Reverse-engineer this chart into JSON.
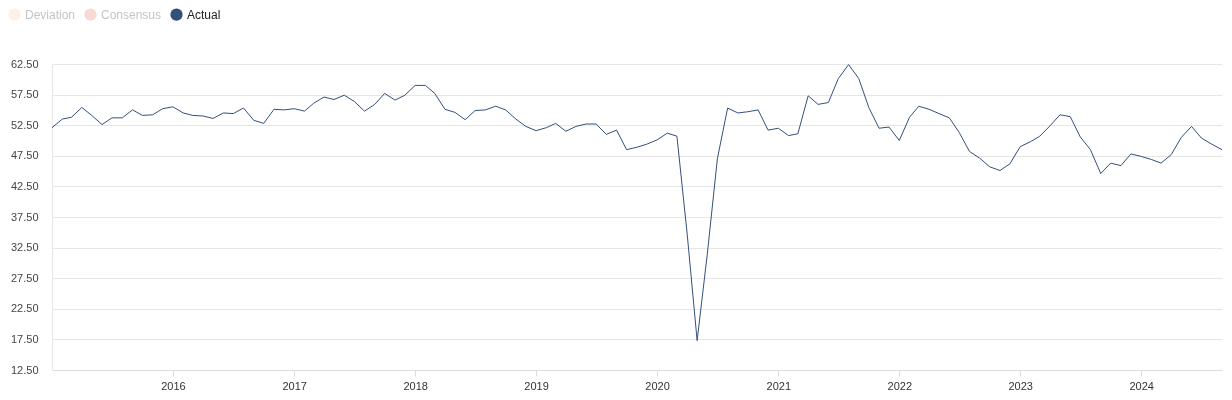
{
  "chart_data": {
    "type": "line",
    "x": [
      "2015-01",
      "2015-02",
      "2015-03",
      "2015-04",
      "2015-05",
      "2015-06",
      "2015-07",
      "2015-08",
      "2015-09",
      "2015-10",
      "2015-11",
      "2015-12",
      "2016-01",
      "2016-02",
      "2016-03",
      "2016-04",
      "2016-05",
      "2016-06",
      "2016-07",
      "2016-08",
      "2016-09",
      "2016-10",
      "2016-11",
      "2016-12",
      "2017-01",
      "2017-02",
      "2017-03",
      "2017-04",
      "2017-05",
      "2017-06",
      "2017-07",
      "2017-08",
      "2017-09",
      "2017-10",
      "2017-11",
      "2017-12",
      "2018-01",
      "2018-02",
      "2018-03",
      "2018-04",
      "2018-05",
      "2018-06",
      "2018-07",
      "2018-08",
      "2018-09",
      "2018-10",
      "2018-11",
      "2018-12",
      "2019-01",
      "2019-02",
      "2019-03",
      "2019-04",
      "2019-05",
      "2019-06",
      "2019-07",
      "2019-08",
      "2019-09",
      "2019-10",
      "2019-11",
      "2019-12",
      "2020-01",
      "2020-02",
      "2020-03",
      "2020-04",
      "2020-05",
      "2020-06",
      "2020-07",
      "2020-08",
      "2020-09",
      "2020-10",
      "2020-11",
      "2020-12",
      "2021-01",
      "2021-02",
      "2021-03",
      "2021-04",
      "2021-05",
      "2021-06",
      "2021-07",
      "2021-08",
      "2021-09",
      "2021-10",
      "2021-11",
      "2021-12",
      "2022-01",
      "2022-02",
      "2022-03",
      "2022-04",
      "2022-05",
      "2022-06",
      "2022-07",
      "2022-08",
      "2022-09",
      "2022-10",
      "2022-11",
      "2022-12",
      "2023-01",
      "2023-02",
      "2023-03",
      "2023-04",
      "2023-05",
      "2023-06",
      "2023-07",
      "2023-08",
      "2023-09",
      "2023-10",
      "2023-11",
      "2023-12",
      "2024-01",
      "2024-02",
      "2024-03",
      "2024-04",
      "2024-05",
      "2024-06",
      "2024-07",
      "2024-08",
      "2024-09"
    ],
    "series": [
      {
        "name": "Deviation",
        "color": "#fdf0e6",
        "values": [
          null,
          null,
          null,
          null,
          null,
          null,
          null,
          null,
          null,
          null,
          null,
          null,
          null,
          null,
          null,
          null,
          null,
          null,
          null,
          null,
          null,
          null,
          null,
          null,
          null,
          null,
          null,
          null,
          null,
          null,
          null,
          null,
          null,
          null,
          null,
          null,
          null,
          null,
          null,
          null,
          null,
          null,
          null,
          null,
          null,
          null,
          null,
          null,
          null,
          null,
          null,
          null,
          null,
          null,
          null,
          null,
          null,
          null,
          null,
          null,
          null,
          null,
          null,
          null,
          null,
          null,
          null,
          null,
          null,
          null,
          null,
          null,
          null,
          null,
          null,
          null,
          null,
          null,
          null,
          null,
          null,
          null,
          null,
          null,
          null,
          null,
          null,
          null,
          null,
          null,
          null,
          null,
          null,
          null,
          null,
          null,
          null,
          null,
          null,
          null,
          null,
          null,
          null,
          null,
          null,
          null,
          null,
          null,
          null,
          null,
          null,
          null,
          null,
          null,
          null,
          null,
          null
        ]
      },
      {
        "name": "Consensus",
        "color": "#f7d9d6",
        "values": [
          null,
          null,
          null,
          null,
          null,
          null,
          null,
          null,
          null,
          null,
          null,
          null,
          null,
          null,
          null,
          null,
          null,
          null,
          null,
          null,
          null,
          null,
          null,
          null,
          null,
          null,
          null,
          null,
          null,
          null,
          null,
          null,
          null,
          null,
          null,
          null,
          null,
          null,
          null,
          null,
          null,
          null,
          null,
          null,
          null,
          null,
          null,
          null,
          null,
          null,
          null,
          null,
          null,
          null,
          null,
          null,
          null,
          null,
          null,
          null,
          null,
          null,
          null,
          null,
          null,
          null,
          null,
          null,
          null,
          null,
          null,
          null,
          null,
          null,
          null,
          null,
          null,
          null,
          null,
          null,
          null,
          null,
          null,
          null,
          null,
          null,
          null,
          null,
          null,
          null,
          null,
          null,
          null,
          null,
          null,
          null,
          null,
          null,
          null,
          null,
          null,
          null,
          null,
          null,
          null,
          null,
          null,
          null,
          null,
          null,
          null,
          null,
          null,
          null,
          null,
          null,
          null
        ]
      },
      {
        "name": "Actual",
        "color": "#34507a",
        "values": [
          52.1,
          53.5,
          53.8,
          55.4,
          54.1,
          52.6,
          53.7,
          53.7,
          55.0,
          54.1,
          54.2,
          55.2,
          55.5,
          54.5,
          54.1,
          54.0,
          53.6,
          54.5,
          54.4,
          55.3,
          53.3,
          52.8,
          55.1,
          55.0,
          55.2,
          54.8,
          56.1,
          57.1,
          56.7,
          57.4,
          56.4,
          54.8,
          55.9,
          57.7,
          56.6,
          57.4,
          59.0,
          59.0,
          57.7,
          55.1,
          54.6,
          53.4,
          54.9,
          55.0,
          55.6,
          55.0,
          53.5,
          52.3,
          51.6,
          52.1,
          52.8,
          51.5,
          52.3,
          52.7,
          52.7,
          51.0,
          51.7,
          48.5,
          48.9,
          49.4,
          50.1,
          51.2,
          50.7,
          34.7,
          17.3,
          31.6,
          47.0,
          55.3,
          54.5,
          54.7,
          55.0,
          51.7,
          52.0,
          50.8,
          51.1,
          57.3,
          55.9,
          56.2,
          60.1,
          62.4,
          60.1,
          55.4,
          52.0,
          52.2,
          50.0,
          53.8,
          55.6,
          55.1,
          54.4,
          53.7,
          51.3,
          48.2,
          47.1,
          45.7,
          45.1,
          46.2,
          49.0,
          49.8,
          50.7,
          52.4,
          54.2,
          53.9,
          50.6,
          48.5,
          44.6,
          46.3,
          45.9,
          47.8,
          47.4,
          46.9,
          46.3,
          47.7,
          50.5,
          52.3,
          50.4,
          49.4,
          48.5
        ]
      }
    ],
    "xlim": [
      "2015-01",
      "2024-09"
    ],
    "xticks": [
      "2016",
      "2017",
      "2018",
      "2019",
      "2020",
      "2021",
      "2022",
      "2023",
      "2024"
    ],
    "ylim": [
      12.5,
      62.5
    ],
    "yticks": [
      {
        "value": 12.5,
        "label": "12.50"
      },
      {
        "value": 17.5,
        "label": "17.50"
      },
      {
        "value": 22.5,
        "label": "22.50"
      },
      {
        "value": 27.5,
        "label": "27.50"
      },
      {
        "value": 32.5,
        "label": "32.50"
      },
      {
        "value": 37.5,
        "label": "37.50"
      },
      {
        "value": 42.5,
        "label": "42.50"
      },
      {
        "value": 47.5,
        "label": "47.50"
      },
      {
        "value": 52.5,
        "label": "52.50"
      },
      {
        "value": 57.5,
        "label": "57.50"
      },
      {
        "value": 62.5,
        "label": "62.50"
      }
    ],
    "grid": "y",
    "legend": "top left",
    "marker": "none"
  }
}
